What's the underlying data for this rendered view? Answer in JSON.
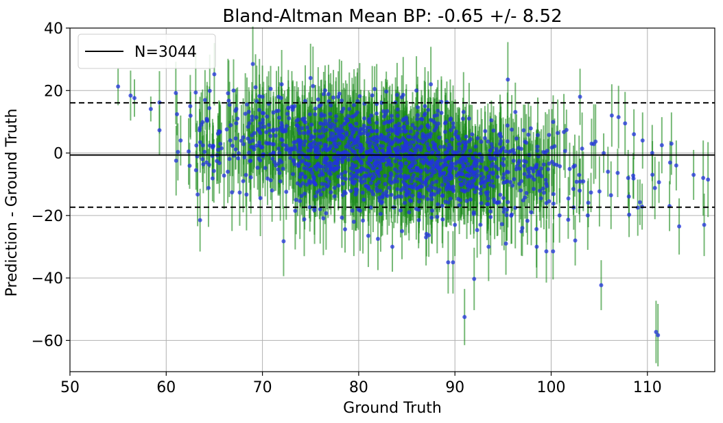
{
  "chart_data": {
    "type": "scatter",
    "title": "Bland-Altman Mean BP: -0.65 +/- 8.52",
    "xlabel": "Ground Truth",
    "ylabel": "Prediction - Ground Truth",
    "xlim": [
      50,
      117
    ],
    "ylim": [
      -70,
      40
    ],
    "x_ticks": [
      50,
      60,
      70,
      80,
      90,
      100,
      110
    ],
    "y_ticks": [
      40,
      20,
      0,
      -20,
      -40,
      -60
    ],
    "grid": true,
    "legend": {
      "placement": "top-left",
      "entries": [
        "N=3044"
      ]
    },
    "mean_line": -0.65,
    "loa_upper": 16.05,
    "loa_lower": -17.35,
    "colors": {
      "points": "#2233dd",
      "errorbars": "#1a8a1a",
      "lines": "#000000",
      "grid": "#b0b0b0"
    },
    "n_points": 3044,
    "points": [
      {
        "x": 55.0,
        "y": 21.3,
        "e": 6
      },
      {
        "x": 56.3,
        "y": 18.4,
        "e": 8
      },
      {
        "x": 56.7,
        "y": 17.6,
        "e": 6
      },
      {
        "x": 58.4,
        "y": 14.1,
        "e": 4
      },
      {
        "x": 59.3,
        "y": 7.3,
        "e": 8
      },
      {
        "x": 59.3,
        "y": 16.2,
        "e": 10
      },
      {
        "x": 61.0,
        "y": 19.2,
        "e": 10
      },
      {
        "x": 61.5,
        "y": 4.0,
        "e": 8
      },
      {
        "x": 62.5,
        "y": 15.0,
        "e": 10
      },
      {
        "x": 63.5,
        "y": 8.0,
        "e": 10
      },
      {
        "x": 64.2,
        "y": -3.0,
        "e": 9
      },
      {
        "x": 65.0,
        "y": 25.2,
        "e": 10
      },
      {
        "x": 66.4,
        "y": -6.0,
        "e": 10
      },
      {
        "x": 67.0,
        "y": 20.0,
        "e": 10
      },
      {
        "x": 68.0,
        "y": -9.0,
        "e": 10
      },
      {
        "x": 69.0,
        "y": 28.5,
        "e": 12
      },
      {
        "x": 70.0,
        "y": 18.0,
        "e": 10
      },
      {
        "x": 71.0,
        "y": -12.0,
        "e": 10
      },
      {
        "x": 72.0,
        "y": 22.0,
        "e": 11
      },
      {
        "x": 73.5,
        "y": -15.0,
        "e": 11
      },
      {
        "x": 75.0,
        "y": 24.0,
        "e": 11
      },
      {
        "x": 76.0,
        "y": -18.0,
        "e": 11
      },
      {
        "x": 78.0,
        "y": 19.0,
        "e": 11
      },
      {
        "x": 79.5,
        "y": -22.0,
        "e": 11
      },
      {
        "x": 81.0,
        "y": -26.5,
        "e": 10
      },
      {
        "x": 82.0,
        "y": -27.5,
        "e": 10
      },
      {
        "x": 83.5,
        "y": -30.0,
        "e": 8
      },
      {
        "x": 84.5,
        "y": -25.0,
        "e": 9
      },
      {
        "x": 86.0,
        "y": 20.0,
        "e": 11
      },
      {
        "x": 87.0,
        "y": -27.0,
        "e": 9
      },
      {
        "x": 87.5,
        "y": 22.0,
        "e": 12
      },
      {
        "x": 89.3,
        "y": -35.0,
        "e": 10
      },
      {
        "x": 89.8,
        "y": -35.0,
        "e": 10
      },
      {
        "x": 90.0,
        "y": -23.0,
        "e": 10
      },
      {
        "x": 91.0,
        "y": -52.5,
        "e": 9
      },
      {
        "x": 92.0,
        "y": -40.3,
        "e": 10
      },
      {
        "x": 93.5,
        "y": -30.0,
        "e": 11
      },
      {
        "x": 95.5,
        "y": 23.5,
        "e": 12
      },
      {
        "x": 95.3,
        "y": -29.0,
        "e": 10
      },
      {
        "x": 97.0,
        "y": -24.0,
        "e": 9
      },
      {
        "x": 98.5,
        "y": -30.0,
        "e": 10
      },
      {
        "x": 99.5,
        "y": -31.5,
        "e": 10
      },
      {
        "x": 100.2,
        "y": -31.5,
        "e": 9
      },
      {
        "x": 102.5,
        "y": -28.0,
        "e": 8
      },
      {
        "x": 103.0,
        "y": 18.0,
        "e": 9
      },
      {
        "x": 104.2,
        "y": 3.0,
        "e": 8
      },
      {
        "x": 105.2,
        "y": -42.3,
        "e": 8
      },
      {
        "x": 106.3,
        "y": 12.0,
        "e": 10
      },
      {
        "x": 107.0,
        "y": 11.5,
        "e": 10
      },
      {
        "x": 108.0,
        "y": -8.0,
        "e": 9
      },
      {
        "x": 108.6,
        "y": 6.0,
        "e": 8
      },
      {
        "x": 109.0,
        "y": -17.5,
        "e": 9
      },
      {
        "x": 109.5,
        "y": 4.0,
        "e": 9
      },
      {
        "x": 110.5,
        "y": 0.0,
        "e": 9
      },
      {
        "x": 110.9,
        "y": -57.3,
        "e": 10
      },
      {
        "x": 111.1,
        "y": -58.3,
        "e": 10
      },
      {
        "x": 111.5,
        "y": 2.5,
        "e": 9
      },
      {
        "x": 112.3,
        "y": -17.0,
        "e": 8
      },
      {
        "x": 112.5,
        "y": 3.0,
        "e": 10
      },
      {
        "x": 113.3,
        "y": -23.5,
        "e": 9
      },
      {
        "x": 113.0,
        "y": -4.0,
        "e": 8
      },
      {
        "x": 114.8,
        "y": -7.0,
        "e": 8
      },
      {
        "x": 115.9,
        "y": -23.0,
        "e": 10
      },
      {
        "x": 116.3,
        "y": -8.5,
        "e": 12
      },
      {
        "x": 115.8,
        "y": -8.0,
        "e": 12
      }
    ]
  }
}
